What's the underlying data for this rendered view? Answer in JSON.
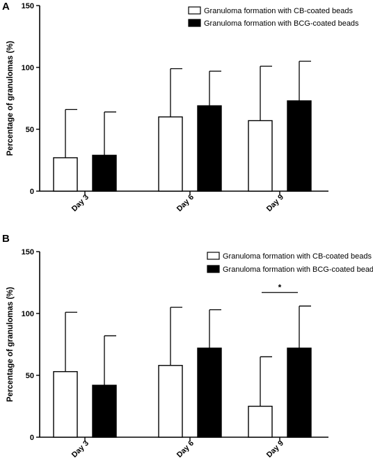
{
  "chart_data": [
    {
      "panel_label": "A",
      "type": "bar",
      "categories": [
        "Day 3",
        "Day 6",
        "Day 9"
      ],
      "series": [
        {
          "name": "Granuloma formation with CB-coated beads",
          "fill": "#ffffff",
          "values": [
            27,
            60,
            57
          ],
          "error_upper": [
            66,
            99,
            101
          ]
        },
        {
          "name": "Granuloma formation with BCG-coated beads",
          "fill": "#000000",
          "values": [
            29,
            69,
            73
          ],
          "error_upper": [
            64,
            97,
            105
          ]
        }
      ],
      "ylabel": "Percentage of granulomas (%)",
      "ylim": [
        0,
        150
      ],
      "yticks": [
        0,
        50,
        100,
        150
      ],
      "grid": false,
      "legend": "top-right",
      "annotations": []
    },
    {
      "panel_label": "B",
      "type": "bar",
      "categories": [
        "Day 3",
        "Day 6",
        "Day 9"
      ],
      "series": [
        {
          "name": "Granuloma formation with CB-coated beads",
          "fill": "#ffffff",
          "values": [
            53,
            58,
            25
          ],
          "error_upper": [
            101,
            105,
            65
          ]
        },
        {
          "name": "Granuloma formation with BCG-coated beads",
          "fill": "#000000",
          "values": [
            42,
            72,
            72
          ],
          "error_upper": [
            82,
            103,
            106
          ]
        }
      ],
      "ylabel": "Percentage of granulomas (%)",
      "ylim": [
        0,
        150
      ],
      "yticks": [
        0,
        50,
        100,
        150
      ],
      "grid": false,
      "legend": "top-right",
      "annotations": [
        {
          "text": "*",
          "category": "Day 9",
          "y": 117
        }
      ]
    }
  ]
}
